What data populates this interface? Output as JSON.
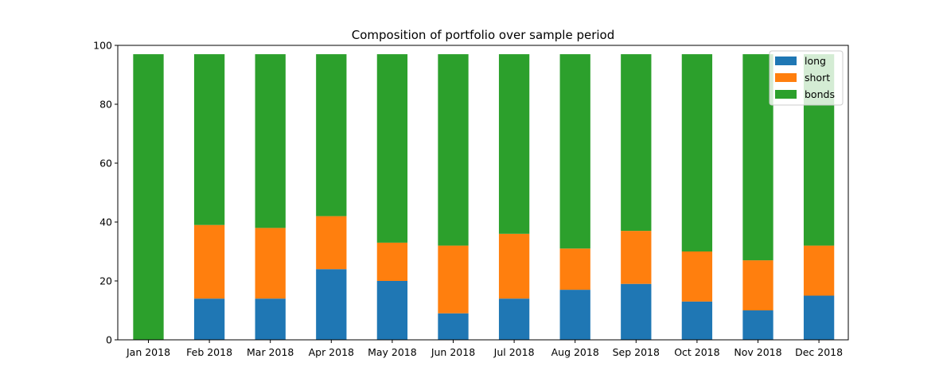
{
  "chart_data": {
    "type": "bar",
    "stacked": true,
    "title": "Composition of portfolio over sample period",
    "xlabel": "",
    "ylabel": "",
    "categories": [
      "Jan 2018",
      "Feb 2018",
      "Mar 2018",
      "Apr 2018",
      "May 2018",
      "Jun 2018",
      "Jul 2018",
      "Aug 2018",
      "Sep 2018",
      "Oct 2018",
      "Nov 2018",
      "Dec 2018"
    ],
    "series": [
      {
        "name": "long",
        "color": "#1f77b4",
        "values": [
          0,
          14,
          14,
          24,
          20,
          9,
          14,
          17,
          19,
          13,
          10,
          15
        ]
      },
      {
        "name": "short",
        "color": "#ff7f0e",
        "values": [
          0,
          25,
          24,
          18,
          13,
          23,
          22,
          14,
          18,
          17,
          17,
          17
        ]
      },
      {
        "name": "bonds",
        "color": "#2ca02c",
        "values": [
          97,
          58,
          59,
          55,
          64,
          65,
          61,
          66,
          60,
          67,
          70,
          65
        ]
      }
    ],
    "ylim": [
      0,
      100
    ],
    "yticks": [
      0,
      20,
      40,
      60,
      80,
      100
    ],
    "grid": false,
    "legend_position": "top-right"
  }
}
